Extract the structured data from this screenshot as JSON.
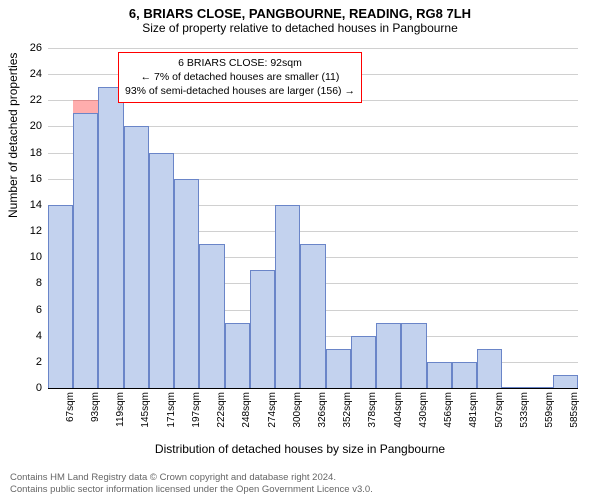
{
  "title": "6, BRIARS CLOSE, PANGBOURNE, READING, RG8 7LH",
  "subtitle": "Size of property relative to detached houses in Pangbourne",
  "chart": {
    "type": "bar",
    "x_labels": [
      "67sqm",
      "93sqm",
      "119sqm",
      "145sqm",
      "171sqm",
      "197sqm",
      "222sqm",
      "248sqm",
      "274sqm",
      "300sqm",
      "326sqm",
      "352sqm",
      "378sqm",
      "404sqm",
      "430sqm",
      "456sqm",
      "481sqm",
      "507sqm",
      "533sqm",
      "559sqm",
      "585sqm"
    ],
    "values": [
      14,
      21,
      23,
      20,
      18,
      16,
      11,
      5,
      9,
      14,
      11,
      3,
      4,
      5,
      5,
      2,
      2,
      3,
      0,
      0,
      1
    ],
    "highlight_index": 1,
    "highlight_height": 22,
    "bar_color": "#c3d2ee",
    "bar_border": "#6a85c8",
    "highlight_fill": "#ff0000",
    "highlight_opacity": 0.32,
    "background_color": "#ffffff",
    "grid_color": "#d0d0d0",
    "axis_color": "#000000",
    "ylim": [
      0,
      26
    ],
    "ytick_step": 2,
    "ylabel": "Number of detached properties",
    "xlabel": "Distribution of detached houses by size in Pangbourne",
    "label_fontsize": 12,
    "tick_fontsize": 11,
    "title_fontsize": 13,
    "bar_width": 1.0
  },
  "annotation": {
    "line1": "6 BRIARS CLOSE: 92sqm",
    "line2": "← 7% of detached houses are smaller (11)",
    "line3": "93% of semi-detached houses are larger (156) →",
    "border_color": "#ff0000"
  },
  "footer": {
    "line1": "Contains HM Land Registry data © Crown copyright and database right 2024.",
    "line2": "Contains public sector information licensed under the Open Government Licence v3.0."
  }
}
